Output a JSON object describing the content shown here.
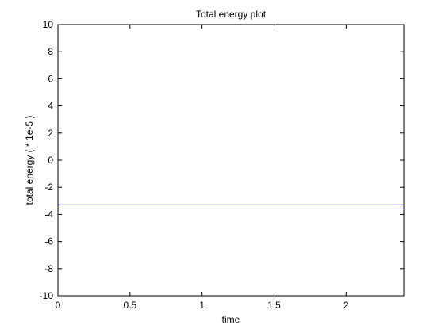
{
  "chart_data": {
    "type": "line",
    "title": "Total energy plot",
    "xlabel": "time",
    "ylabel": "total energy ( * 1e-5 )",
    "xlim": [
      0,
      2.4
    ],
    "ylim": [
      -10,
      10
    ],
    "xticks": [
      0,
      0.5,
      1,
      1.5,
      2
    ],
    "xtick_labels": [
      "0",
      "0.5",
      "1",
      "1.5",
      "2"
    ],
    "yticks": [
      -10,
      -8,
      -6,
      -4,
      -2,
      0,
      2,
      4,
      6,
      8,
      10
    ],
    "ytick_labels": [
      "-10",
      "-8",
      "-6",
      "-4",
      "-2",
      "0",
      "2",
      "4",
      "6",
      "8",
      "10"
    ],
    "grid": false,
    "legend": "none",
    "series": [
      {
        "color": "#00007f",
        "x": [
          0,
          2.4
        ],
        "y": [
          -3.3,
          -3.3
        ]
      }
    ]
  }
}
